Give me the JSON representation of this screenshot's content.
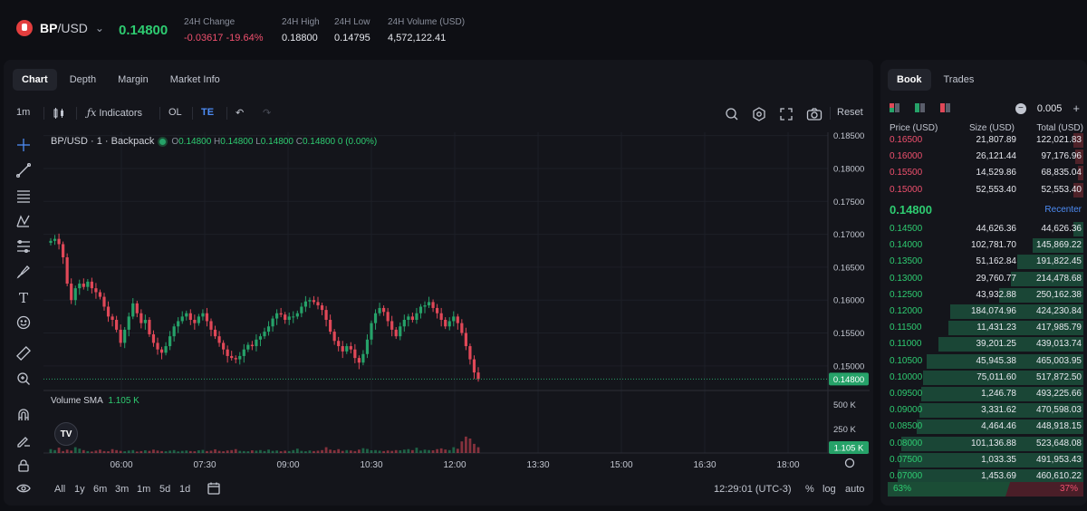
{
  "header": {
    "base": "BP",
    "quote": "/USD",
    "price": "0.14800",
    "change_label": "24H Change",
    "change_abs": "-0.03617",
    "change_pct": "-19.64%",
    "high_label": "24H High",
    "high": "0.18800",
    "low_label": "24H Low",
    "low": "0.14795",
    "volume_label": "24H Volume (USD)",
    "volume": "4,572,122.41"
  },
  "tabs": [
    "Chart",
    "Depth",
    "Margin",
    "Market Info"
  ],
  "toolbar": {
    "interval": "1m",
    "indicators": "Indicators",
    "ol": "OL",
    "te": "TE",
    "reset": "Reset"
  },
  "legend": {
    "title": "BP/USD · 1 · Backpack",
    "o": "0.14800",
    "h": "0.14800",
    "l": "0.14800",
    "c": "0.14800",
    "chg": "0 (0.00%)",
    "o_lbl": "O",
    "h_lbl": "H",
    "l_lbl": "L",
    "c_lbl": "C",
    "vol_label": "Volume SMA",
    "vol_value": "1.105 K"
  },
  "chart_data": {
    "type": "candlestick",
    "y_ticks": [
      "0.18500",
      "0.18000",
      "0.17500",
      "0.17000",
      "0.16500",
      "0.16000",
      "0.15500",
      "0.15000"
    ],
    "ylim": [
      0.1475,
      0.1855
    ],
    "current_price": "0.14800",
    "x_ticks": [
      "06:00",
      "07:30",
      "09:00",
      "10:30",
      "12:00",
      "13:30",
      "15:00",
      "16:30",
      "18:00"
    ],
    "volume_ticks": [
      "500 K",
      "250 K"
    ],
    "volume_current": "1.105 K",
    "close_path": [
      0.169,
      0.1693,
      0.1685,
      0.1665,
      0.1625,
      0.16,
      0.1618,
      0.1625,
      0.162,
      0.1628,
      0.1618,
      0.1612,
      0.1605,
      0.159,
      0.1575,
      0.157,
      0.1555,
      0.1535,
      0.1555,
      0.1575,
      0.1595,
      0.158,
      0.1565,
      0.157,
      0.1548,
      0.1535,
      0.1525,
      0.152,
      0.153,
      0.1545,
      0.156,
      0.1568,
      0.1575,
      0.158,
      0.157,
      0.1565,
      0.1575,
      0.158,
      0.1568,
      0.1555,
      0.1545,
      0.1535,
      0.1525,
      0.1515,
      0.1512,
      0.151,
      0.1515,
      0.1525,
      0.1532,
      0.153,
      0.154,
      0.1545,
      0.1552,
      0.156,
      0.1572,
      0.158,
      0.1578,
      0.157,
      0.1575,
      0.1575,
      0.158,
      0.159,
      0.1598,
      0.16,
      0.1597,
      0.1592,
      0.1585,
      0.157,
      0.1552,
      0.1538,
      0.153,
      0.1522,
      0.153,
      0.1525,
      0.1512,
      0.1505,
      0.1518,
      0.154,
      0.1565,
      0.158,
      0.1588,
      0.1582,
      0.1568,
      0.1555,
      0.1545,
      0.156,
      0.157,
      0.1575,
      0.157,
      0.158,
      0.159,
      0.1592,
      0.1597,
      0.1588,
      0.158,
      0.157,
      0.156,
      0.1568,
      0.1575,
      0.1565,
      0.155,
      0.153,
      0.151,
      0.149,
      0.148
    ],
    "volume_values": [
      40,
      30,
      55,
      20,
      35,
      25,
      60,
      45,
      30,
      20,
      15,
      25,
      35,
      20,
      18,
      40,
      30,
      22,
      18,
      25,
      30,
      15,
      20,
      28,
      22,
      35,
      25,
      20,
      18,
      24,
      30,
      16,
      22,
      26,
      20,
      18,
      28,
      32,
      20,
      24,
      38,
      22,
      18,
      26,
      30,
      40,
      22,
      20,
      18,
      28,
      24,
      30,
      20,
      35,
      22,
      26,
      18,
      24,
      20,
      30,
      45,
      22,
      18,
      26,
      20,
      24,
      30,
      60,
      35,
      28,
      40,
      22,
      30,
      26,
      20,
      35,
      50,
      42,
      28,
      30,
      24,
      20,
      26,
      22,
      30,
      28,
      35,
      40,
      30,
      55,
      25,
      35,
      30,
      28,
      40,
      48,
      36,
      30,
      60,
      44,
      120,
      170,
      150,
      95,
      60
    ]
  },
  "bottombar": {
    "ranges": [
      "All",
      "1y",
      "6m",
      "3m",
      "1m",
      "5d",
      "1d"
    ],
    "clock": "12:29:01 (UTC-3)",
    "pct": "%",
    "log": "log",
    "auto": "auto"
  },
  "book": {
    "tabs": [
      "Book",
      "Trades"
    ],
    "tick": "0.005",
    "head_price": "Price (USD)",
    "head_size": "Size (USD)",
    "head_total": "Total (USD)",
    "asks": [
      {
        "p": "0.16500",
        "s": "21,807.89",
        "t": "122,021.83",
        "f": 0.05
      },
      {
        "p": "0.16000",
        "s": "26,121.44",
        "t": "97,176.96",
        "f": 0.04
      },
      {
        "p": "0.15500",
        "s": "14,529.86",
        "t": "68,835.04",
        "f": 0.03
      },
      {
        "p": "0.15000",
        "s": "52,553.40",
        "t": "52,553.40",
        "f": 0.05
      }
    ],
    "mid": "0.14800",
    "recenter": "Recenter",
    "bids": [
      {
        "p": "0.14500",
        "s": "44,626.36",
        "t": "44,626.36",
        "f": 0.05
      },
      {
        "p": "0.14000",
        "s": "102,781.70",
        "t": "145,869.22",
        "f": 0.26
      },
      {
        "p": "0.13500",
        "s": "51,162.84",
        "t": "191,822.45",
        "f": 0.34
      },
      {
        "p": "0.13000",
        "s": "29,760.77",
        "t": "214,478.68",
        "f": 0.37
      },
      {
        "p": "0.12500",
        "s": "43,932.88",
        "t": "250,162.38",
        "f": 0.43
      },
      {
        "p": "0.12000",
        "s": "184,074.96",
        "t": "424,230.84",
        "f": 0.68
      },
      {
        "p": "0.11500",
        "s": "11,431.23",
        "t": "417,985.79",
        "f": 0.69
      },
      {
        "p": "0.11000",
        "s": "39,201.25",
        "t": "439,013.74",
        "f": 0.74
      },
      {
        "p": "0.10500",
        "s": "45,945.38",
        "t": "465,003.95",
        "f": 0.8
      },
      {
        "p": "0.10000",
        "s": "75,011.60",
        "t": "517,872.50",
        "f": 0.82
      },
      {
        "p": "0.09500",
        "s": "1,246.78",
        "t": "493,225.66",
        "f": 0.83
      },
      {
        "p": "0.09000",
        "s": "3,331.62",
        "t": "470,598.03",
        "f": 0.84
      },
      {
        "p": "0.08500",
        "s": "4,464.46",
        "t": "448,918.15",
        "f": 0.85
      },
      {
        "p": "0.08000",
        "s": "101,136.88",
        "t": "523,648.08",
        "f": 0.93
      },
      {
        "p": "0.07500",
        "s": "1,033.35",
        "t": "491,953.43",
        "f": 0.94
      },
      {
        "p": "0.07000",
        "s": "1,453.69",
        "t": "460,610.22",
        "f": 0.95
      }
    ],
    "buy_pct": "63%",
    "sell_pct": "37%",
    "buy_fraction": 0.63
  }
}
